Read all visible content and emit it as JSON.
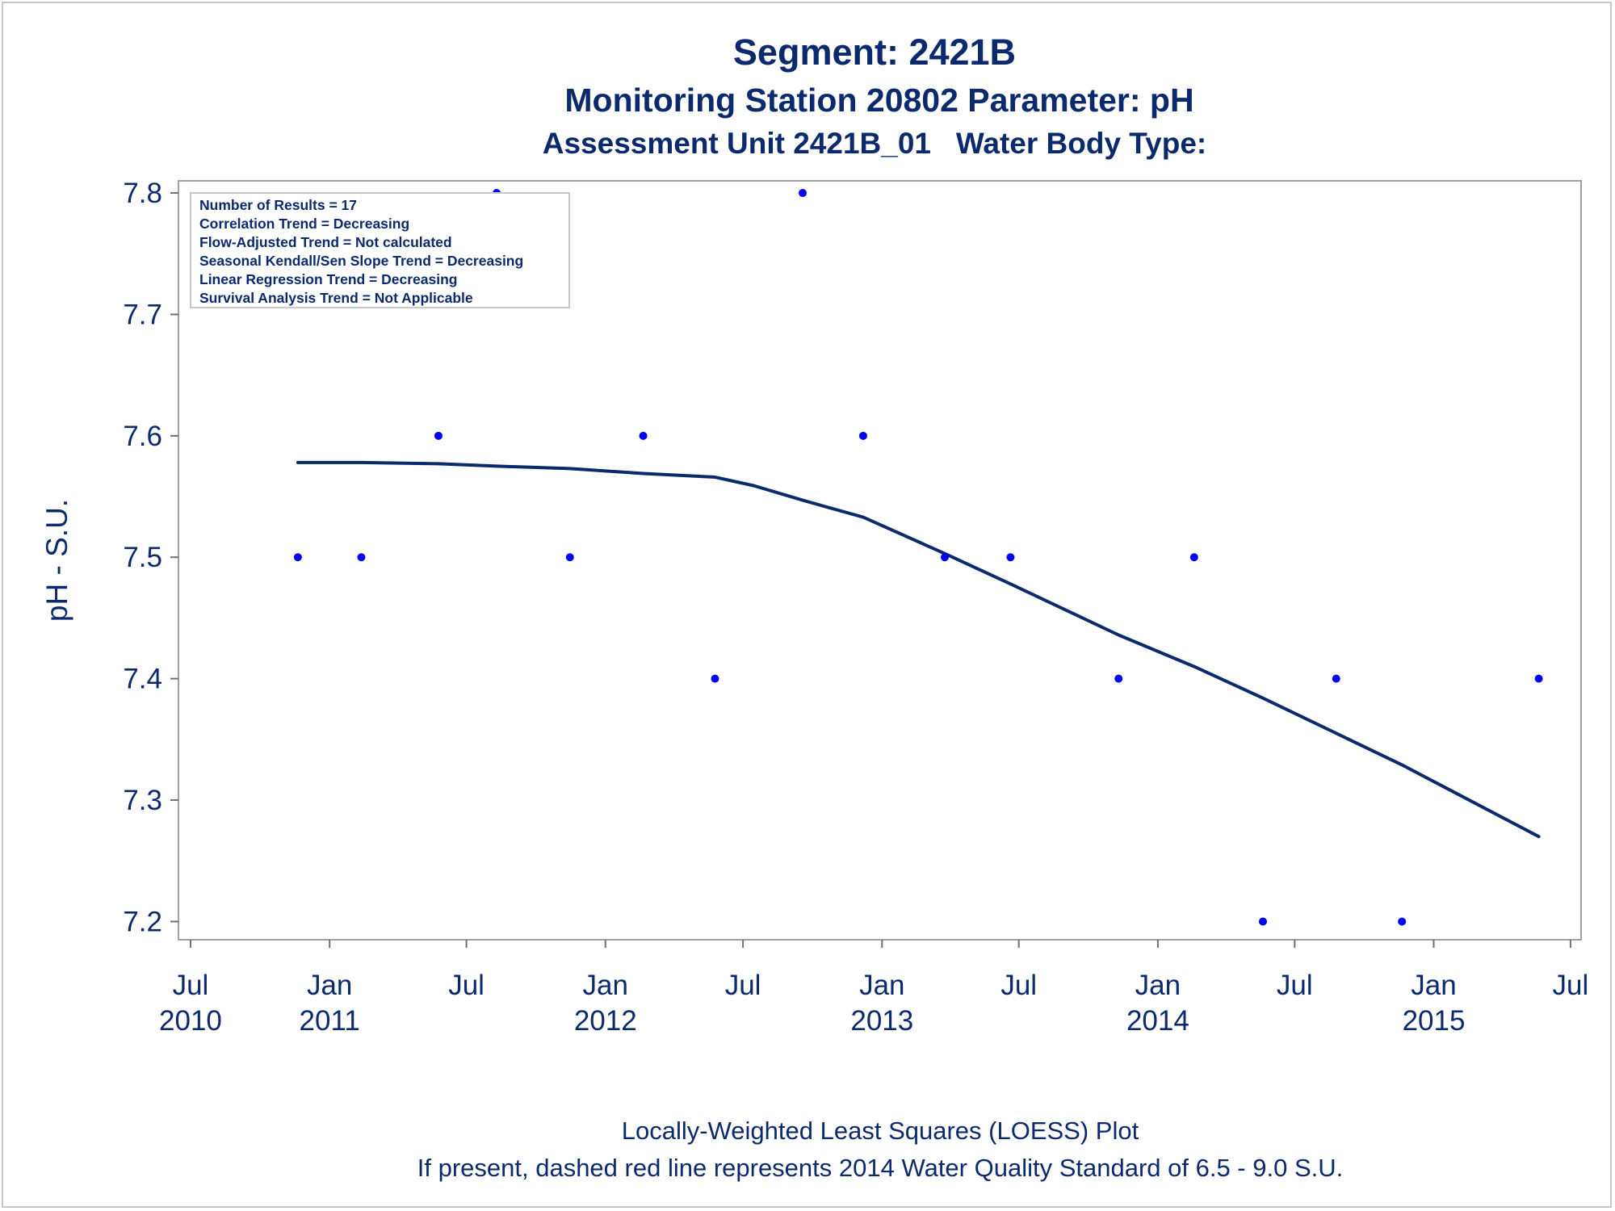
{
  "chart_data": {
    "type": "scatter",
    "title": "Segment: 2421B",
    "subtitle": "Monitoring Station 20802 Parameter: pH",
    "subtitle2": "Assessment Unit 2421B_01   Water Body Type:",
    "xlabel": "",
    "ylabel": "pH - S.U.",
    "xlim": [
      "2010-06-15",
      "2015-07-15"
    ],
    "ylim": [
      7.185,
      7.81
    ],
    "grid": false,
    "x_ticks": [
      {
        "date": "2010-07-01",
        "month": "Jul",
        "year": "2010"
      },
      {
        "date": "2011-01-01",
        "month": "Jan",
        "year": "2011"
      },
      {
        "date": "2011-07-01",
        "month": "Jul",
        "year": ""
      },
      {
        "date": "2012-01-01",
        "month": "Jan",
        "year": "2012"
      },
      {
        "date": "2012-07-01",
        "month": "Jul",
        "year": ""
      },
      {
        "date": "2013-01-01",
        "month": "Jan",
        "year": "2013"
      },
      {
        "date": "2013-07-01",
        "month": "Jul",
        "year": ""
      },
      {
        "date": "2014-01-01",
        "month": "Jan",
        "year": "2014"
      },
      {
        "date": "2014-07-01",
        "month": "Jul",
        "year": ""
      },
      {
        "date": "2015-01-01",
        "month": "Jan",
        "year": "2015"
      },
      {
        "date": "2015-07-01",
        "month": "Jul",
        "year": ""
      }
    ],
    "y_ticks": [
      "7.2",
      "7.3",
      "7.4",
      "7.5",
      "7.6",
      "7.7",
      "7.8"
    ],
    "series": [
      {
        "kind": "points",
        "color": "#0000ff",
        "points": [
          {
            "x": "2010-11-20",
            "y": 7.5
          },
          {
            "x": "2011-02-12",
            "y": 7.5
          },
          {
            "x": "2011-05-25",
            "y": 7.6
          },
          {
            "x": "2011-08-10",
            "y": 7.8
          },
          {
            "x": "2011-11-15",
            "y": 7.5
          },
          {
            "x": "2012-02-20",
            "y": 7.6
          },
          {
            "x": "2012-05-25",
            "y": 7.4
          },
          {
            "x": "2012-09-18",
            "y": 7.8
          },
          {
            "x": "2012-12-07",
            "y": 7.6
          },
          {
            "x": "2013-03-25",
            "y": 7.5
          },
          {
            "x": "2013-06-20",
            "y": 7.5
          },
          {
            "x": "2013-11-10",
            "y": 7.4
          },
          {
            "x": "2014-02-18",
            "y": 7.5
          },
          {
            "x": "2014-05-20",
            "y": 7.2
          },
          {
            "x": "2014-08-25",
            "y": 7.4
          },
          {
            "x": "2014-11-20",
            "y": 7.2
          },
          {
            "x": "2015-05-20",
            "y": 7.4
          }
        ]
      },
      {
        "kind": "loess",
        "color": "#0b2a6e",
        "points": [
          {
            "x": "2010-11-20",
            "y": 7.578
          },
          {
            "x": "2011-02-12",
            "y": 7.578
          },
          {
            "x": "2011-05-25",
            "y": 7.577
          },
          {
            "x": "2011-08-10",
            "y": 7.575
          },
          {
            "x": "2011-11-15",
            "y": 7.573
          },
          {
            "x": "2012-02-20",
            "y": 7.569
          },
          {
            "x": "2012-05-25",
            "y": 7.566
          },
          {
            "x": "2012-07-15",
            "y": 7.559
          },
          {
            "x": "2012-09-18",
            "y": 7.547
          },
          {
            "x": "2012-12-07",
            "y": 7.533
          },
          {
            "x": "2013-03-25",
            "y": 7.503
          },
          {
            "x": "2013-06-20",
            "y": 7.478
          },
          {
            "x": "2013-11-10",
            "y": 7.436
          },
          {
            "x": "2014-02-18",
            "y": 7.41
          },
          {
            "x": "2014-05-20",
            "y": 7.384
          },
          {
            "x": "2014-08-25",
            "y": 7.355
          },
          {
            "x": "2014-11-20",
            "y": 7.329
          },
          {
            "x": "2015-05-20",
            "y": 7.27
          }
        ]
      }
    ],
    "info_box": [
      "Number of Results = 17",
      "Correlation Trend = Decreasing",
      "Flow-Adjusted Trend = Not calculated",
      "Seasonal Kendall/Sen Slope Trend = Decreasing",
      "Linear Regression Trend = Decreasing",
      "Survival Analysis Trend = Not Applicable"
    ],
    "footnotes": [
      "Locally-Weighted Least Squares (LOESS) Plot",
      "If present, dashed red line represents 2014 Water Quality Standard of 6.5 - 9.0 S.U."
    ]
  }
}
